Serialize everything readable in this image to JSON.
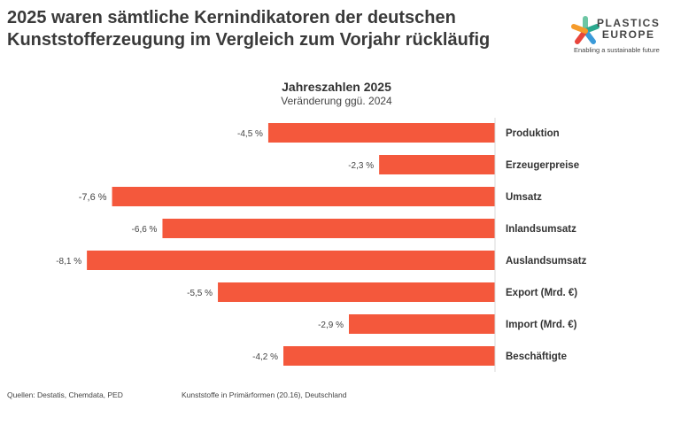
{
  "title": "2025 waren sämtliche Kernindikatoren der deutschen Kunststofferzeugung im Vergleich zum Vorjahr rückläufig",
  "logo": {
    "brand_line1": "PLASTICS",
    "brand_line2": "EUROPE",
    "tagline": "Enabling a sustainable future"
  },
  "footer": {
    "sources": "Quellen: Destatis, Chemdata, PED",
    "scope": "Kunststoffe in Primärformen (20.16), Deutschland"
  },
  "chart_data": {
    "type": "bar",
    "orientation": "horizontal",
    "title": "Jahreszahlen 2025",
    "subtitle": "Veränderung ggü. 2024",
    "categories": [
      "Produktion",
      "Erzeugerpreise",
      "Umsatz",
      "Inlandsumsatz",
      "Auslandsumsatz",
      "Export (Mrd. €)",
      "Import (Mrd. €)",
      "Beschäftigte"
    ],
    "values": [
      -4.5,
      -2.3,
      -7.6,
      -6.6,
      -8.1,
      -5.5,
      -2.9,
      -4.2
    ],
    "data_labels": [
      "-4,5 %",
      "-2,3 %",
      "-7,6 %",
      "-6,6 %",
      "-8,1 %",
      "-5,5 %",
      "-2,9 %",
      "-4,2 %"
    ],
    "unit": "%",
    "bar_color": "#f4583c",
    "grid": false,
    "legend": "none"
  }
}
